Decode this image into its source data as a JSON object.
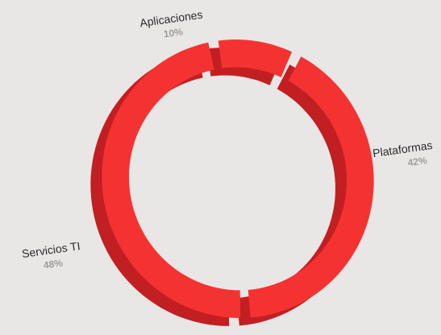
{
  "chart_data": {
    "type": "pie",
    "variant": "3d-donut",
    "title": "",
    "slices": [
      {
        "label": "Plataformas",
        "pct_text": "42%",
        "value": 42
      },
      {
        "label": "Servicios TI",
        "pct_text": "48%",
        "value": 48
      },
      {
        "label": "Aplicaciones",
        "pct_text": "10%",
        "value": 10
      }
    ],
    "colors": {
      "top": "#f53232",
      "side": "#c21f22",
      "side_light": "#d42a2c",
      "background": "#e9e6e6",
      "label": "#2b2b2b",
      "percent": "#9c9c9c"
    },
    "legend": "none"
  }
}
